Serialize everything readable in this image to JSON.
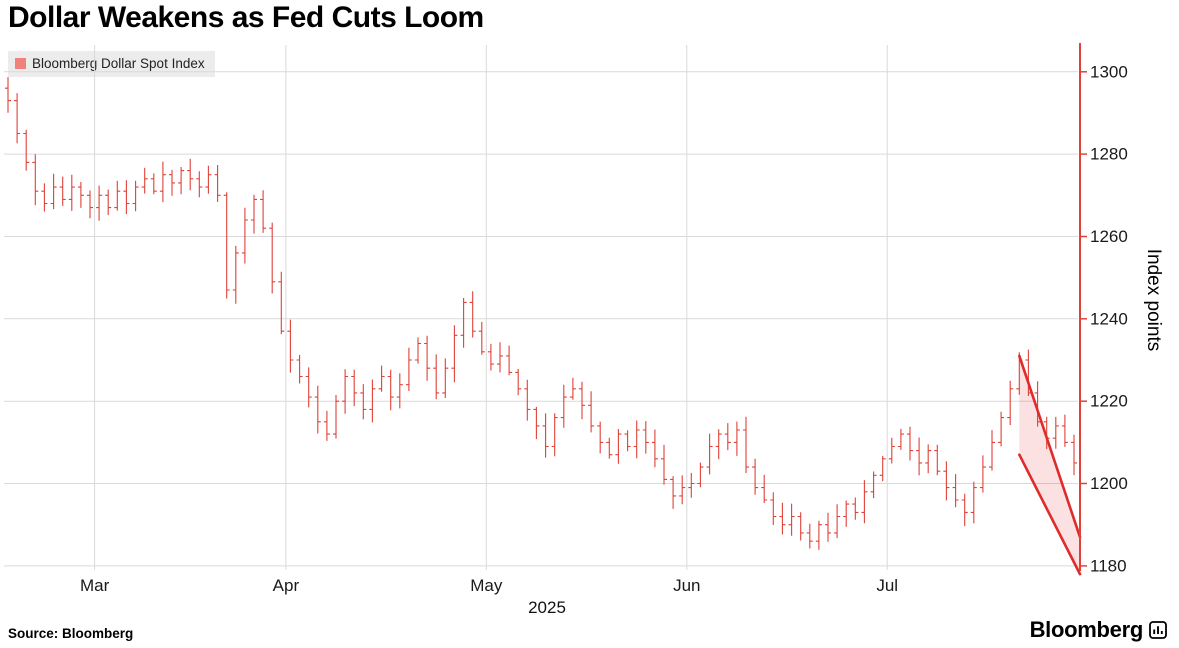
{
  "title": "Dollar Weakens as Fed Cuts Loom",
  "legend": {
    "label": "Bloomberg Dollar Spot Index"
  },
  "footer": {
    "source": "Source: Bloomberg",
    "brand": "Bloomberg"
  },
  "chart_data": {
    "type": "ohlc",
    "title": "Dollar Weakens as Fed Cuts Loom",
    "series_name": "Bloomberg Dollar Spot Index",
    "ylabel": "Index points",
    "xlabel": "2025",
    "yticks": [
      1180,
      1200,
      1220,
      1240,
      1260,
      1280,
      1300
    ],
    "ylim": [
      1179,
      1306.5
    ],
    "months": [
      {
        "label": "Mar",
        "start_index": 10
      },
      {
        "label": "Apr",
        "start_index": 31
      },
      {
        "label": "May",
        "start_index": 53
      },
      {
        "label": "Jun",
        "start_index": 75
      },
      {
        "label": "Jul",
        "start_index": 97
      }
    ],
    "first_open": 1296,
    "closes": [
      1293,
      1285,
      1278,
      1271,
      1268,
      1272,
      1269,
      1272,
      1270,
      1267,
      1270,
      1267,
      1271,
      1268,
      1272,
      1274,
      1271,
      1275,
      1273,
      1276,
      1274,
      1272,
      1275,
      1270,
      1247,
      1256,
      1264,
      1269,
      1262,
      1249,
      1237,
      1230,
      1226,
      1221,
      1215,
      1212,
      1220,
      1226,
      1222,
      1218,
      1223,
      1226,
      1221,
      1224,
      1230,
      1234,
      1228,
      1222,
      1228,
      1236,
      1244,
      1237,
      1232,
      1229,
      1231,
      1227,
      1223,
      1218,
      1214,
      1209,
      1216,
      1221,
      1223,
      1219,
      1214,
      1210,
      1207,
      1212,
      1209,
      1213,
      1210,
      1206,
      1201,
      1197,
      1199,
      1200,
      1204,
      1209,
      1212,
      1210,
      1213,
      1204,
      1199,
      1196,
      1192,
      1190,
      1192,
      1188,
      1186,
      1190,
      1188,
      1192,
      1195,
      1193,
      1198,
      1202,
      1206,
      1209,
      1212,
      1208,
      1205,
      1208,
      1203,
      1199,
      1196,
      1193,
      1199,
      1204,
      1210,
      1216,
      1223,
      1230,
      1222,
      1215,
      1211,
      1214,
      1210,
      1205
    ],
    "annotation_channel": {
      "start_index": 111,
      "top_start": 1231,
      "top_end": 1187,
      "bottom_start": 1207,
      "bottom_end": 1178
    },
    "colors": {
      "series": "#df4238",
      "projection_line": "#e02b2b",
      "projection_fill": "rgba(224,43,43,0.14)",
      "grid": "#d9d9d9",
      "axis_text": "#1a1a1a",
      "legend_bg": "#ececec",
      "legend_swatch": "#f0827d"
    }
  }
}
